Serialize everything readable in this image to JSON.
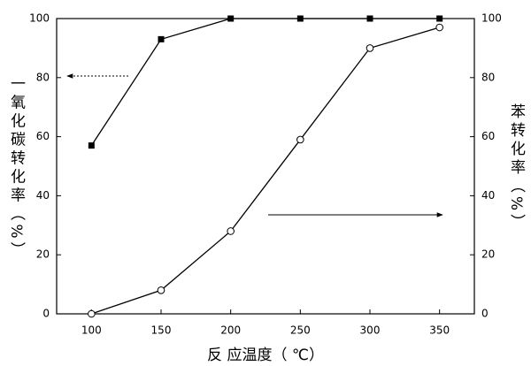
{
  "chart_data": {
    "type": "line",
    "xlabel": "反 应温度（ ℃）",
    "ylabel": "一氧化碳转化率（%）",
    "y2label": "苯转化率（%）",
    "x": [
      100,
      150,
      200,
      250,
      300,
      350
    ],
    "xlim": [
      75,
      375
    ],
    "xticks": [
      100,
      150,
      200,
      250,
      300,
      350
    ],
    "ylim": [
      0,
      100
    ],
    "yticks": [
      0,
      20,
      40,
      60,
      80,
      100
    ],
    "y2lim": [
      0,
      100
    ],
    "y2ticks": [
      0,
      20,
      40,
      60,
      80,
      100
    ],
    "series": [
      {
        "color": "#000000",
        "marker": "square",
        "values": [
          57,
          93,
          100,
          100,
          100,
          100
        ]
      },
      {
        "color": "#000000",
        "marker": "circle",
        "axis": "y2",
        "values": [
          0,
          8,
          28,
          59,
          90,
          97
        ]
      }
    ]
  }
}
